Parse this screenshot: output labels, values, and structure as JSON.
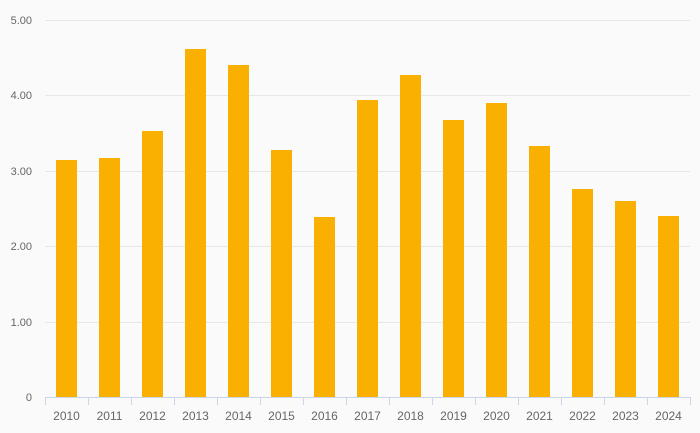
{
  "chart_data": {
    "type": "bar",
    "title": "",
    "xlabel": "",
    "ylabel": "",
    "categories": [
      "2010",
      "2011",
      "2012",
      "2013",
      "2014",
      "2015",
      "2016",
      "2017",
      "2018",
      "2019",
      "2020",
      "2021",
      "2022",
      "2023",
      "2024"
    ],
    "values": [
      3.14,
      3.17,
      3.52,
      4.61,
      4.4,
      3.27,
      2.38,
      3.94,
      4.27,
      3.67,
      3.9,
      3.33,
      2.75,
      2.6,
      2.4
    ],
    "ylim": [
      0,
      5
    ],
    "y_ticks": [
      {
        "value": 0,
        "label": "0"
      },
      {
        "value": 1,
        "label": "1.00"
      },
      {
        "value": 2,
        "label": "2.00"
      },
      {
        "value": 3,
        "label": "3.00"
      },
      {
        "value": 4,
        "label": "4.00"
      },
      {
        "value": 5,
        "label": "5.00"
      }
    ],
    "grid": true,
    "legend": "none",
    "colors": {
      "bar": "#f9b000",
      "background": "#fafafa",
      "gridline": "#e7e7e7",
      "axis_line": "#ccd6eb",
      "labels": "#666666"
    }
  }
}
